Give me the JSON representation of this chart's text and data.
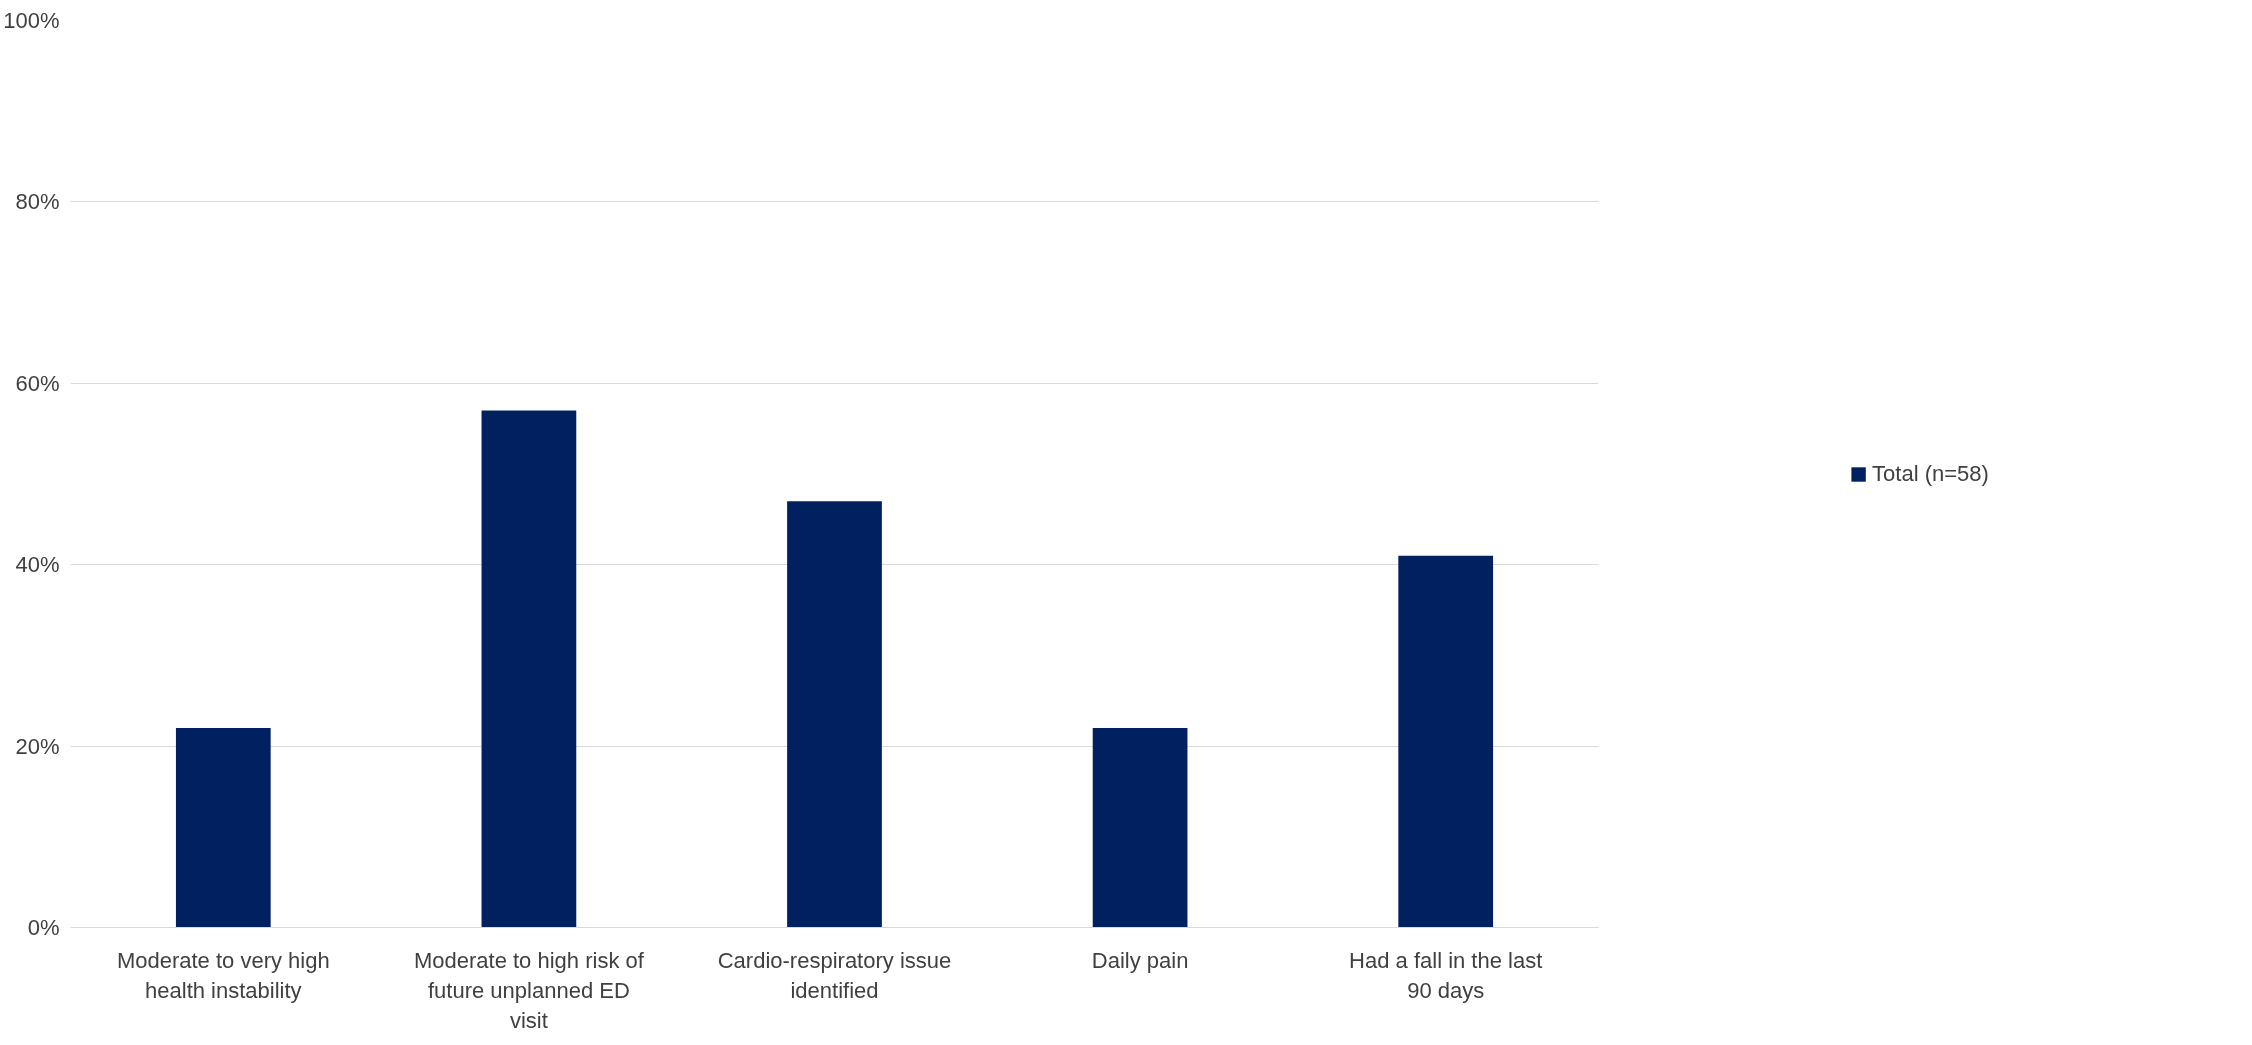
{
  "chart_data": {
    "type": "bar",
    "categories": [
      "Moderate to very high health instability",
      "Moderate to high risk of future unplanned ED visit",
      "Cardio-respiratory issue identified",
      "Daily pain",
      "Had a fall in the last 90 days"
    ],
    "series": [
      {
        "name": "Total (n=58)",
        "color": "#002060",
        "values": [
          22,
          57,
          47,
          22,
          41
        ]
      }
    ],
    "ylim": [
      0,
      100
    ],
    "yticks": [
      {
        "value": 0,
        "label": "0%"
      },
      {
        "value": 20,
        "label": "20%"
      },
      {
        "value": 40,
        "label": "40%"
      },
      {
        "value": 60,
        "label": "60%"
      },
      {
        "value": 80,
        "label": "80%"
      },
      {
        "value": 100,
        "label": "100%"
      }
    ],
    "grid": "y",
    "legend": "right"
  }
}
